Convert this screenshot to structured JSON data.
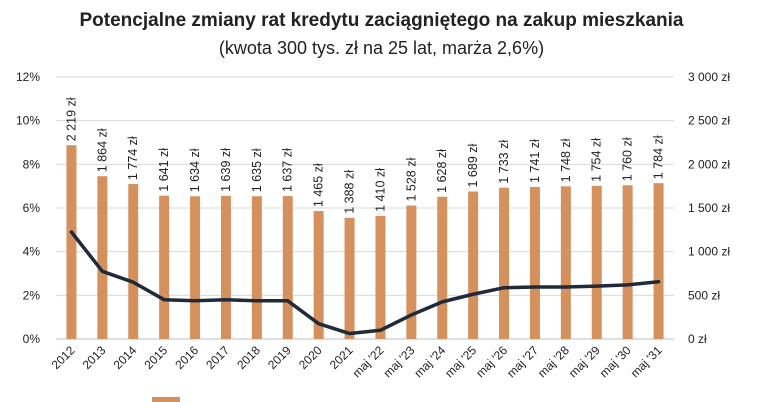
{
  "chart_data": {
    "type": "bar",
    "title": "Potencjalne zmiany rat kredytu zaciągniętego na zakup mieszkania",
    "subtitle": "(kwota 300 tys. zł na 25 lat, marża 2,6%)",
    "categories": [
      "2012",
      "2013",
      "2014",
      "2015",
      "2016",
      "2017",
      "2018",
      "2019",
      "2020",
      "2021",
      "maj '22",
      "maj '23",
      "maj '24",
      "maj '25",
      "maj '26",
      "maj '27",
      "maj '28",
      "maj '29",
      "maj '30",
      "maj '31"
    ],
    "series": [
      {
        "type": "bar",
        "axis": "right",
        "color": "#D4915E",
        "values": [
          2219,
          1864,
          1774,
          1641,
          1634,
          1639,
          1635,
          1637,
          1465,
          1388,
          1410,
          1528,
          1628,
          1689,
          1733,
          1741,
          1748,
          1754,
          1760,
          1784
        ],
        "labels": [
          "2 219 zł",
          "1 864 zł",
          "1 774 zł",
          "1 641 zł",
          "1 634 zł",
          "1 639 zł",
          "1 635 zł",
          "1 637 zł",
          "1 465 zł",
          "1 388 zł",
          "1 410 zł",
          "1 528 zł",
          "1 628 zł",
          "1 689 zł",
          "1 733 zł",
          "1 741 zł",
          "1 748 zł",
          "1 754 zł",
          "1 760 zł",
          "1 784 zł"
        ]
      },
      {
        "type": "line",
        "axis": "left",
        "color": "#1F2A3A",
        "values": [
          4.9,
          3.1,
          2.6,
          1.8,
          1.75,
          1.8,
          1.75,
          1.75,
          0.7,
          0.25,
          0.4,
          1.1,
          1.7,
          2.05,
          2.35,
          2.38,
          2.38,
          2.42,
          2.48,
          2.62
        ]
      }
    ],
    "left_axis": {
      "ylim": [
        0,
        12
      ],
      "ticks": [
        "0%",
        "2%",
        "4%",
        "6%",
        "8%",
        "10%",
        "12%"
      ]
    },
    "right_axis": {
      "ylim": [
        0,
        3000
      ],
      "ticks": [
        "0 zł",
        "500 zł",
        "1 000 zł",
        "1 500 zł",
        "2 000 zł",
        "2 500 zł",
        "3 000 zł"
      ]
    },
    "grid": true,
    "legend_position": "bottom"
  }
}
